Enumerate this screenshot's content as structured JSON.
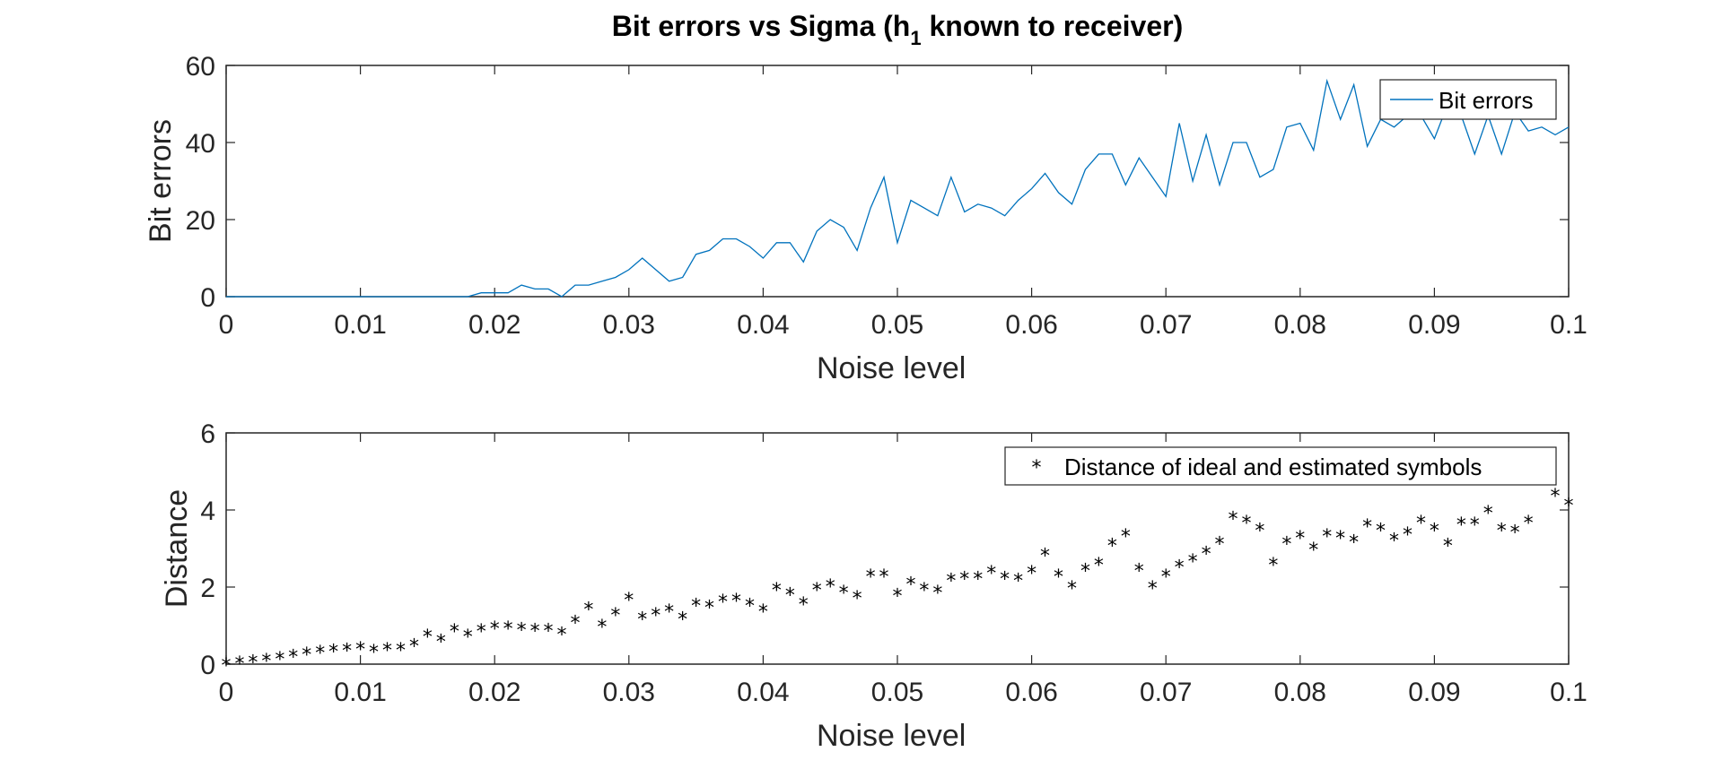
{
  "title_main": "Bit errors vs Sigma (h",
  "title_sub": "1",
  "title_rest": " known to receiver)",
  "colors": {
    "line": "#0072BD",
    "marker": "#000000",
    "axis": "#262626"
  },
  "chart_data": [
    {
      "type": "line",
      "xlabel": "Noise level",
      "ylabel": "Bit errors",
      "xlim": [
        0,
        0.1
      ],
      "ylim": [
        0,
        60
      ],
      "xticks": [
        "0",
        "0.01",
        "0.02",
        "0.03",
        "0.04",
        "0.05",
        "0.06",
        "0.07",
        "0.08",
        "0.09",
        "0.1"
      ],
      "yticks": [
        "0",
        "20",
        "40",
        "60"
      ],
      "legend_position": "top-right",
      "series": [
        {
          "name": "Bit errors",
          "x": [
            0,
            0.001,
            0.002,
            0.003,
            0.004,
            0.005,
            0.006,
            0.007,
            0.008,
            0.009,
            0.01,
            0.011,
            0.012,
            0.013,
            0.014,
            0.015,
            0.016,
            0.017,
            0.018,
            0.019,
            0.02,
            0.021,
            0.022,
            0.023,
            0.024,
            0.025,
            0.026,
            0.027,
            0.028,
            0.029,
            0.03,
            0.031,
            0.032,
            0.033,
            0.034,
            0.035,
            0.036,
            0.037,
            0.038,
            0.039,
            0.04,
            0.041,
            0.042,
            0.043,
            0.044,
            0.045,
            0.046,
            0.047,
            0.048,
            0.049,
            0.05,
            0.051,
            0.052,
            0.053,
            0.054,
            0.055,
            0.056,
            0.057,
            0.058,
            0.059,
            0.06,
            0.061,
            0.062,
            0.063,
            0.064,
            0.065,
            0.066,
            0.067,
            0.068,
            0.069,
            0.07,
            0.071,
            0.072,
            0.073,
            0.074,
            0.075,
            0.076,
            0.077,
            0.078,
            0.079,
            0.08,
            0.081,
            0.082,
            0.083,
            0.084,
            0.085,
            0.086,
            0.087,
            0.088,
            0.089,
            0.09,
            0.091,
            0.092,
            0.093,
            0.094,
            0.095,
            0.096,
            0.097,
            0.098,
            0.099,
            0.1
          ],
          "y": [
            0,
            0,
            0,
            0,
            0,
            0,
            0,
            0,
            0,
            0,
            0,
            0,
            0,
            0,
            0,
            0,
            0,
            0,
            0,
            1,
            1,
            1,
            3,
            2,
            2,
            0,
            3,
            3,
            4,
            5,
            7,
            10,
            7,
            4,
            5,
            11,
            12,
            15,
            15,
            13,
            10,
            14,
            14,
            9,
            17,
            20,
            18,
            12,
            23,
            31,
            14,
            25,
            23,
            21,
            31,
            22,
            24,
            23,
            21,
            25,
            28,
            32,
            27,
            24,
            33,
            37,
            37,
            29,
            36,
            31,
            26,
            45,
            30,
            42,
            29,
            40,
            40,
            31,
            33,
            44,
            45,
            38,
            56,
            46,
            55,
            39,
            46,
            44,
            47,
            47,
            41,
            50,
            47,
            37,
            47,
            37,
            48,
            43,
            44,
            42,
            44
          ]
        }
      ]
    },
    {
      "type": "scatter",
      "xlabel": "Noise level",
      "ylabel": "Distance",
      "xlim": [
        0,
        0.1
      ],
      "ylim": [
        0,
        6
      ],
      "xticks": [
        "0",
        "0.01",
        "0.02",
        "0.03",
        "0.04",
        "0.05",
        "0.06",
        "0.07",
        "0.08",
        "0.09",
        "0.1"
      ],
      "yticks": [
        "0",
        "2",
        "4",
        "6"
      ],
      "legend_position": "top-right",
      "series": [
        {
          "name": "Distance of ideal and estimated symbols",
          "marker": "*",
          "x": [
            0,
            0.001,
            0.002,
            0.003,
            0.004,
            0.005,
            0.006,
            0.007,
            0.008,
            0.009,
            0.01,
            0.011,
            0.012,
            0.013,
            0.014,
            0.015,
            0.016,
            0.017,
            0.018,
            0.019,
            0.02,
            0.021,
            0.022,
            0.023,
            0.024,
            0.025,
            0.026,
            0.027,
            0.028,
            0.029,
            0.03,
            0.031,
            0.032,
            0.033,
            0.034,
            0.035,
            0.036,
            0.037,
            0.038,
            0.039,
            0.04,
            0.041,
            0.042,
            0.043,
            0.044,
            0.045,
            0.046,
            0.047,
            0.048,
            0.049,
            0.05,
            0.051,
            0.052,
            0.053,
            0.054,
            0.055,
            0.056,
            0.057,
            0.058,
            0.059,
            0.06,
            0.061,
            0.062,
            0.063,
            0.064,
            0.065,
            0.066,
            0.067,
            0.068,
            0.069,
            0.07,
            0.071,
            0.072,
            0.073,
            0.074,
            0.075,
            0.076,
            0.077,
            0.078,
            0.079,
            0.08,
            0.081,
            0.082,
            0.083,
            0.084,
            0.085,
            0.086,
            0.087,
            0.088,
            0.089,
            0.09,
            0.091,
            0.092,
            0.093,
            0.094,
            0.095,
            0.096,
            0.097,
            0.098,
            0.099,
            0.1
          ],
          "y": [
            0,
            0.05,
            0.08,
            0.12,
            0.16,
            0.22,
            0.28,
            0.32,
            0.36,
            0.38,
            0.42,
            0.35,
            0.4,
            0.4,
            0.5,
            0.75,
            0.62,
            0.88,
            0.75,
            0.88,
            0.95,
            0.95,
            0.92,
            0.9,
            0.9,
            0.8,
            1.1,
            1.45,
            1.0,
            1.3,
            1.7,
            1.2,
            1.3,
            1.4,
            1.2,
            1.55,
            1.5,
            1.65,
            1.68,
            1.55,
            1.4,
            1.95,
            1.82,
            1.58,
            1.95,
            2.05,
            1.88,
            1.75,
            2.3,
            2.3,
            1.8,
            2.1,
            1.95,
            1.88,
            2.2,
            2.25,
            2.25,
            2.4,
            2.25,
            2.2,
            2.4,
            2.85,
            2.3,
            2.0,
            2.45,
            2.6,
            3.1,
            3.35,
            2.45,
            2.0,
            2.3,
            2.55,
            2.7,
            2.9,
            3.15,
            3.8,
            3.7,
            3.5,
            2.6,
            3.15,
            3.3,
            3.0,
            3.35,
            3.3,
            3.2,
            3.6,
            3.5,
            3.25,
            3.4,
            3.7,
            3.5,
            3.1,
            3.65,
            3.65,
            3.95,
            3.5,
            3.45,
            3.7,
            null,
            4.4,
            4.15
          ]
        }
      ]
    }
  ]
}
